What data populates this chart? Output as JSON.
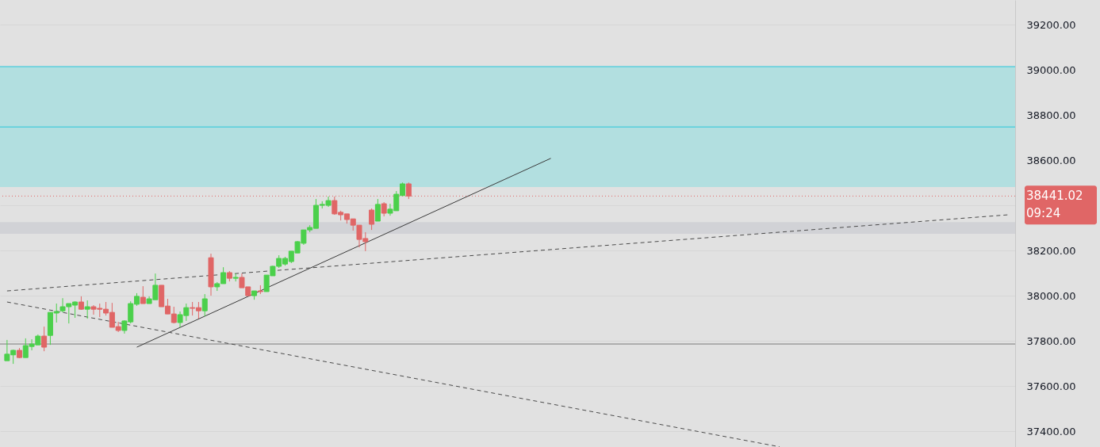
{
  "chart_data": {
    "type": "candlestick",
    "categories": [
      null,
      null,
      null,
      null,
      null,
      null,
      null,
      null,
      null,
      null,
      null,
      null,
      null,
      null,
      null,
      null,
      null,
      null,
      null,
      null,
      null,
      null,
      null,
      null,
      null,
      null,
      null,
      null,
      null,
      null,
      null,
      null,
      null,
      null,
      null,
      null,
      null,
      null,
      null,
      null,
      null,
      null,
      null,
      null,
      null,
      null,
      null,
      null,
      null,
      null,
      null,
      null,
      null,
      null,
      null,
      null,
      null,
      null,
      null,
      null,
      null,
      null,
      null,
      null,
      null,
      null,
      null,
      null,
      null,
      null,
      null,
      null,
      null,
      null,
      null,
      null,
      null,
      null,
      null,
      null,
      null,
      null,
      null,
      null,
      null,
      null,
      null,
      null,
      null,
      null,
      null,
      null,
      null,
      null,
      null,
      null,
      null,
      null,
      null,
      null,
      null,
      null,
      null,
      null,
      null,
      null,
      null,
      null,
      null,
      null,
      null,
      null,
      null,
      null,
      null,
      null,
      null,
      null,
      null,
      null,
      null,
      null,
      null,
      null,
      null,
      null,
      null,
      null,
      null,
      null,
      null,
      null,
      null,
      null,
      null,
      null,
      null,
      null,
      null,
      null,
      null,
      null,
      null,
      null,
      null,
      null,
      null,
      null,
      null,
      null,
      null,
      null,
      null,
      null,
      null,
      null,
      null,
      null,
      null,
      null,
      null,
      null,
      null
    ],
    "ohlc": [
      [
        37712,
        37804,
        37712,
        37741
      ],
      [
        37738,
        37761,
        37698,
        37758
      ],
      [
        37758,
        37768,
        37723,
        37726
      ],
      [
        37726,
        37811,
        37726,
        37779
      ],
      [
        37775,
        37807,
        37758,
        37786
      ],
      [
        37782,
        37828,
        37782,
        37821
      ],
      [
        37821,
        37863,
        37754,
        37772
      ],
      [
        37824,
        37926,
        37782,
        37926
      ],
      [
        37923,
        37965,
        37881,
        37930
      ],
      [
        37933,
        37989,
        37926,
        37951
      ],
      [
        37951,
        37965,
        37877,
        37965
      ],
      [
        37958,
        37975,
        37902,
        37972
      ],
      [
        37972,
        37997,
        37937,
        37940
      ],
      [
        37940,
        37979,
        37898,
        37951
      ],
      [
        37951,
        37958,
        37916,
        37940
      ],
      [
        37944,
        37965,
        37905,
        37940
      ],
      [
        37940,
        37972,
        37912,
        37923
      ],
      [
        37926,
        37968,
        37860,
        37860
      ],
      [
        37863,
        37884,
        37839,
        37846
      ],
      [
        37846,
        37891,
        37832,
        37888
      ],
      [
        37884,
        37975,
        37877,
        37965
      ],
      [
        37962,
        38011,
        37955,
        37997
      ],
      [
        37993,
        38042,
        37965,
        37965
      ],
      [
        37965,
        37997,
        37965,
        37986
      ],
      [
        37982,
        38098,
        37982,
        38046
      ],
      [
        38046,
        38046,
        37951,
        37951
      ],
      [
        37954,
        37986,
        37919,
        37919
      ],
      [
        37919,
        37951,
        37877,
        37881
      ],
      [
        37881,
        37930,
        37860,
        37916
      ],
      [
        37912,
        37965,
        37888,
        37947
      ],
      [
        37947,
        37972,
        37912,
        37944
      ],
      [
        37947,
        37972,
        37898,
        37933
      ],
      [
        37933,
        38007,
        37909,
        37986
      ],
      [
        38168,
        38186,
        38000,
        38039
      ],
      [
        38039,
        38060,
        38021,
        38053
      ],
      [
        38053,
        38126,
        38053,
        38102
      ],
      [
        38102,
        38109,
        38063,
        38077
      ],
      [
        38077,
        38098,
        38063,
        38081
      ],
      [
        38081,
        38098,
        38035,
        38035
      ],
      [
        38039,
        38039,
        38000,
        38000
      ],
      [
        38000,
        38021,
        37982,
        38021
      ],
      [
        38021,
        38046,
        38007,
        38018
      ],
      [
        38018,
        38091,
        38018,
        38091
      ],
      [
        38088,
        38133,
        38088,
        38130
      ],
      [
        38130,
        38179,
        38123,
        38165
      ],
      [
        38140,
        38172,
        38133,
        38165
      ],
      [
        38151,
        38197,
        38144,
        38197
      ],
      [
        38189,
        38242,
        38189,
        38239
      ],
      [
        38232,
        38291,
        38225,
        38291
      ],
      [
        38291,
        38312,
        38281,
        38302
      ],
      [
        38298,
        38428,
        38298,
        38400
      ],
      [
        38400,
        38418,
        38386,
        38404
      ],
      [
        38400,
        38439,
        38393,
        38421
      ],
      [
        38421,
        38439,
        38358,
        38362
      ],
      [
        38369,
        38376,
        38333,
        38358
      ],
      [
        38362,
        38362,
        38319,
        38337
      ],
      [
        38340,
        38340,
        38288,
        38312
      ],
      [
        38312,
        38312,
        38214,
        38249
      ],
      [
        38253,
        38281,
        38197,
        38239
      ],
      [
        38379,
        38386,
        38291,
        38316
      ],
      [
        38330,
        38428,
        38330,
        38404
      ],
      [
        38407,
        38414,
        38351,
        38365
      ],
      [
        38365,
        38407,
        38354,
        38383
      ],
      [
        38376,
        38463,
        38376,
        38449
      ],
      [
        38443,
        38501,
        38443,
        38495
      ],
      [
        38495,
        38501,
        38428,
        38441.02
      ],
      null,
      null,
      null,
      null,
      null,
      null,
      null,
      null,
      null,
      null,
      null,
      null,
      null,
      null,
      null,
      null,
      null,
      null,
      null,
      null,
      null,
      null,
      null,
      null,
      null,
      null,
      null,
      null,
      null,
      null,
      null,
      null,
      null,
      null,
      null,
      null,
      null,
      null,
      null,
      null,
      null,
      null,
      null,
      null,
      null,
      null,
      null,
      null,
      null,
      null,
      null,
      null,
      null,
      null,
      null,
      null,
      null,
      null,
      null,
      null,
      null,
      null,
      null,
      null,
      null,
      null,
      null,
      null,
      null,
      null,
      null,
      null,
      null,
      null,
      null,
      null,
      null,
      null,
      null,
      null,
      null,
      null,
      null,
      null,
      null,
      null,
      null,
      null,
      null,
      null,
      null,
      null,
      null,
      null,
      null,
      null,
      null
    ],
    "colors": [
      "#4bd04b",
      "#4bd04b",
      "#e06666",
      "#4bd04b",
      "#4bd04b",
      "#4bd04b",
      "#e06666",
      "#4bd04b",
      "#4bd04b",
      "#4bd04b",
      "#4bd04b",
      "#4bd04b",
      "#e06666",
      "#4bd04b",
      "#e06666",
      "#e06666",
      "#e06666",
      "#e06666",
      "#e06666",
      "#4bd04b",
      "#4bd04b",
      "#4bd04b",
      "#e06666",
      "#4bd04b",
      "#4bd04b",
      "#e06666",
      "#e06666",
      "#e06666",
      "#4bd04b",
      "#4bd04b",
      "#e06666",
      "#e06666",
      "#4bd04b",
      "#e06666",
      "#4bd04b",
      "#4bd04b",
      "#e06666",
      "#4bd04b",
      "#e06666",
      "#e06666",
      "#4bd04b",
      "#e06666",
      "#4bd04b",
      "#4bd04b",
      "#4bd04b",
      "#4bd04b",
      "#4bd04b",
      "#4bd04b",
      "#4bd04b",
      "#4bd04b",
      "#4bd04b",
      "#4bd04b",
      "#4bd04b",
      "#e06666",
      "#e06666",
      "#e06666",
      "#e06666",
      "#e06666",
      "#e06666",
      "#e06666",
      "#4bd04b",
      "#e06666",
      "#4bd04b",
      "#4bd04b",
      "#4bd04b",
      "#e06666",
      null,
      null,
      null,
      null,
      null,
      null,
      null,
      null,
      null,
      null,
      null,
      null,
      null,
      null,
      null,
      null,
      null,
      null,
      null,
      null,
      null,
      null,
      null,
      null,
      null,
      null,
      null,
      null,
      null,
      null,
      null,
      null,
      null,
      null,
      null,
      null,
      null,
      null,
      null,
      null,
      null,
      null,
      null,
      null,
      null,
      null,
      null,
      null,
      null,
      null,
      null,
      null,
      null,
      null,
      null,
      null,
      null,
      null,
      null,
      null,
      null,
      null,
      null,
      null,
      null,
      null,
      null,
      null,
      null,
      null,
      null,
      null,
      null,
      null,
      null,
      null,
      null,
      null,
      null,
      null,
      null,
      null,
      null,
      null,
      null,
      null,
      null,
      null,
      null,
      null,
      null,
      null,
      null,
      null,
      null,
      null,
      null
    ],
    "series": [
      {
        "type": "line",
        "color": "#3a3a3a",
        "line_style": "solid",
        "values": [
          null,
          null,
          null,
          null,
          null,
          null,
          null,
          null,
          null,
          null,
          null,
          null,
          null,
          null,
          null,
          null,
          null,
          null,
          null,
          null,
          null,
          37772,
          null,
          null,
          null,
          null,
          null,
          null,
          null,
          null,
          null,
          null,
          null,
          null,
          null,
          null,
          null,
          null,
          null,
          null,
          null,
          null,
          null,
          null,
          null,
          null,
          null,
          null,
          null,
          null,
          null,
          null,
          null,
          null,
          null,
          null,
          null,
          null,
          null,
          null,
          null,
          null,
          null,
          null,
          null,
          null,
          null,
          null,
          null,
          null,
          null,
          null,
          null,
          null,
          null,
          null,
          null,
          null,
          null,
          null,
          null,
          null,
          null,
          null,
          null,
          null,
          null,
          null,
          38608,
          null,
          null,
          null,
          null,
          null,
          null,
          null,
          null,
          null,
          null,
          null,
          null,
          null,
          null,
          null,
          null,
          null,
          null,
          null,
          null,
          null,
          null,
          null,
          null,
          null,
          null,
          null,
          null,
          null,
          null,
          null,
          null,
          null,
          null,
          null,
          null,
          null,
          null,
          null,
          null,
          null,
          null,
          null,
          null,
          null,
          null,
          null,
          null,
          null,
          null,
          null,
          null,
          null,
          null,
          null,
          null,
          null,
          null,
          null,
          null,
          null,
          null,
          null,
          null,
          null,
          null,
          null,
          null,
          null,
          null,
          null,
          null,
          null,
          null
        ]
      },
      {
        "type": "line",
        "color": "#4a4a4a",
        "line_style": "dashed",
        "values": [
          38021,
          null,
          null,
          null,
          null,
          null,
          null,
          null,
          null,
          null,
          null,
          null,
          null,
          null,
          null,
          null,
          null,
          null,
          null,
          null,
          null,
          null,
          null,
          null,
          null,
          null,
          null,
          null,
          null,
          null,
          null,
          null,
          null,
          null,
          null,
          null,
          null,
          null,
          null,
          null,
          null,
          null,
          null,
          null,
          null,
          null,
          null,
          null,
          null,
          null,
          null,
          null,
          null,
          null,
          null,
          null,
          null,
          null,
          null,
          null,
          null,
          null,
          null,
          null,
          null,
          null,
          null,
          null,
          null,
          null,
          null,
          null,
          null,
          null,
          null,
          null,
          null,
          null,
          null,
          null,
          null,
          null,
          null,
          null,
          null,
          null,
          null,
          null,
          null,
          null,
          null,
          null,
          null,
          null,
          null,
          null,
          null,
          null,
          null,
          null,
          null,
          null,
          null,
          null,
          null,
          null,
          null,
          null,
          null,
          null,
          null,
          null,
          null,
          null,
          null,
          null,
          null,
          null,
          null,
          null,
          null,
          null,
          null,
          null,
          null,
          null,
          null,
          null,
          null,
          null,
          null,
          null,
          null,
          null,
          null,
          null,
          null,
          null,
          null,
          null,
          null,
          null,
          null,
          null,
          null,
          null,
          null,
          null,
          null,
          null,
          null,
          null,
          null,
          null,
          null,
          null,
          null,
          null,
          null,
          null,
          null,
          null,
          38358
        ]
      },
      {
        "type": "line",
        "color": "#4a4a4a",
        "line_style": "dashed",
        "values": [
          37972,
          null,
          null,
          null,
          null,
          null,
          null,
          null,
          null,
          null,
          null,
          null,
          null,
          null,
          null,
          null,
          null,
          null,
          null,
          null,
          null,
          null,
          null,
          null,
          null,
          null,
          null,
          null,
          null,
          null,
          null,
          null,
          null,
          null,
          null,
          null,
          null,
          null,
          null,
          null,
          null,
          null,
          null,
          null,
          null,
          null,
          null,
          null,
          null,
          null,
          null,
          null,
          null,
          null,
          null,
          null,
          null,
          null,
          null,
          null,
          null,
          null,
          null,
          null,
          null,
          null,
          null,
          null,
          null,
          null,
          null,
          null,
          null,
          null,
          null,
          null,
          null,
          null,
          null,
          null,
          null,
          null,
          null,
          null,
          null,
          null,
          null,
          null,
          null,
          null,
          null,
          null,
          null,
          null,
          null,
          null,
          null,
          null,
          null,
          null,
          null,
          null,
          null,
          null,
          null,
          null,
          null,
          null,
          null,
          null,
          null,
          null,
          null,
          null,
          null,
          null,
          null,
          null,
          null,
          null,
          null,
          null,
          null,
          null,
          null,
          37331,
          null,
          null,
          null,
          null,
          null,
          null,
          null,
          null,
          null,
          null,
          null,
          null,
          null,
          null,
          null,
          null,
          null,
          null,
          null,
          null,
          null,
          null,
          null,
          null,
          null,
          null,
          null,
          null,
          null,
          null,
          null,
          null,
          null,
          null,
          null,
          null,
          null
        ]
      }
    ],
    "ylim": [
      37330,
      39309
    ],
    "yticks": [
      {
        "value": 37400,
        "label": "37400.00"
      },
      {
        "value": 37600,
        "label": "37600.00"
      },
      {
        "value": 37800,
        "label": "37800.00"
      },
      {
        "value": 38000,
        "label": "38000.00"
      },
      {
        "value": 38200,
        "label": "38200.00"
      },
      {
        "value": 38400,
        "label": null
      },
      {
        "value": 38600,
        "label": "38600.00"
      },
      {
        "value": 38800,
        "label": "38800.00"
      },
      {
        "value": 39000,
        "label": "39000.00"
      },
      {
        "value": 39200,
        "label": "39200.00"
      }
    ],
    "tick_labels": "y",
    "grid": "y",
    "bands": [
      {
        "axis": "y",
        "from": 38481,
        "to": 39014,
        "color": "#b2dfe0"
      },
      {
        "axis": "y",
        "from": 38274,
        "to": 38326,
        "color": "#d1d2d6"
      }
    ],
    "ref_lines": [
      {
        "axis": "y",
        "value": 39014,
        "color": "#26c6da",
        "line_style": "solid"
      },
      {
        "axis": "y",
        "value": 38747,
        "color": "#26c6da",
        "line_style": "solid"
      },
      {
        "axis": "y",
        "value": 37786,
        "color": "#7a7a7a",
        "line_style": "solid"
      },
      {
        "axis": "y",
        "value": 38441.02,
        "color": "#e06666",
        "line_style": "dotted",
        "label": "38441.02"
      }
    ],
    "annotations": [
      "09:24"
    ]
  }
}
